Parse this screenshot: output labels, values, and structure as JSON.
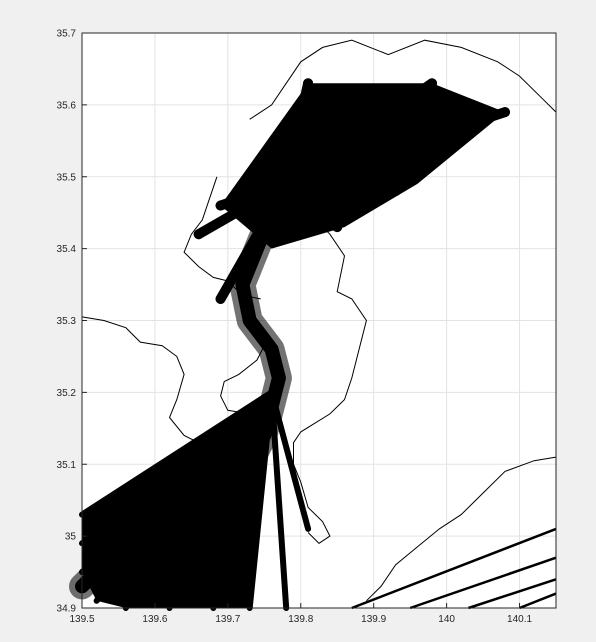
{
  "chart_data": {
    "type": "line",
    "title": "",
    "xlabel": "",
    "ylabel": "",
    "xlim": [
      139.5,
      140.15
    ],
    "ylim": [
      34.9,
      35.7
    ],
    "x_ticks": [
      139.5,
      139.6,
      139.7,
      139.8,
      139.9,
      140.0,
      140.1
    ],
    "x_tick_labels": [
      "139.5",
      "139.6",
      "139.7",
      "139.8",
      "139.9",
      "140",
      "140.1"
    ],
    "y_ticks": [
      34.9,
      35.0,
      35.1,
      35.2,
      35.3,
      35.4,
      35.5,
      35.6,
      35.7
    ],
    "y_tick_labels": [
      "34.9",
      "35",
      "35.1",
      "35.2",
      "35.3",
      "35.4",
      "35.5",
      "35.6",
      "35.7"
    ],
    "grid": true,
    "legend": "none",
    "colors": {
      "figure_bg": "#f0f0f0",
      "axes_bg": "#ffffff",
      "grid": "#e3e3e3",
      "line": "#000000"
    },
    "coastline_west": [
      [
        139.5,
        35.305
      ],
      [
        139.53,
        35.3
      ],
      [
        139.56,
        35.29
      ],
      [
        139.58,
        35.27
      ],
      [
        139.61,
        35.265
      ],
      [
        139.63,
        35.25
      ],
      [
        139.64,
        35.225
      ],
      [
        139.63,
        35.19
      ],
      [
        139.62,
        35.165
      ],
      [
        139.64,
        35.14
      ],
      [
        139.66,
        35.13
      ],
      [
        139.69,
        35.135
      ],
      [
        139.71,
        35.125
      ]
    ],
    "coastline_west_upper": [
      [
        139.745,
        35.33
      ],
      [
        139.72,
        35.335
      ],
      [
        139.7,
        35.355
      ],
      [
        139.68,
        35.36
      ],
      [
        139.66,
        35.375
      ],
      [
        139.64,
        35.395
      ],
      [
        139.65,
        35.42
      ],
      [
        139.665,
        35.44
      ],
      [
        139.675,
        35.47
      ],
      [
        139.685,
        35.5
      ]
    ],
    "coastline_west_bay": [
      [
        139.75,
        35.265
      ],
      [
        139.74,
        35.245
      ],
      [
        139.715,
        35.225
      ],
      [
        139.695,
        35.215
      ],
      [
        139.69,
        35.195
      ],
      [
        139.7,
        35.175
      ],
      [
        139.73,
        35.17
      ],
      [
        139.745,
        35.15
      ],
      [
        139.75,
        35.12
      ]
    ],
    "coastline_boso": [
      [
        139.79,
        35.52
      ],
      [
        139.81,
        35.45
      ],
      [
        139.84,
        35.42
      ],
      [
        139.86,
        35.39
      ],
      [
        139.85,
        35.34
      ],
      [
        139.87,
        35.33
      ],
      [
        139.89,
        35.3
      ],
      [
        139.88,
        35.26
      ],
      [
        139.87,
        35.22
      ],
      [
        139.86,
        35.19
      ],
      [
        139.84,
        35.17
      ],
      [
        139.8,
        35.145
      ],
      [
        139.79,
        35.13
      ],
      [
        139.79,
        35.1
      ],
      [
        139.8,
        35.075
      ],
      [
        139.81,
        35.04
      ],
      [
        139.83,
        35.02
      ],
      [
        139.84,
        35.0
      ],
      [
        139.825,
        34.99
      ],
      [
        139.81,
        35.005
      ]
    ],
    "coastline_east": [
      [
        140.15,
        35.11
      ],
      [
        140.12,
        35.105
      ],
      [
        140.08,
        35.09
      ],
      [
        140.05,
        35.06
      ],
      [
        140.02,
        35.03
      ],
      [
        139.99,
        35.01
      ],
      [
        139.96,
        34.985
      ],
      [
        139.93,
        34.96
      ],
      [
        139.91,
        34.93
      ],
      [
        139.89,
        34.91
      ]
    ],
    "coastline_north": [
      [
        139.73,
        35.58
      ],
      [
        139.76,
        35.6
      ],
      [
        139.78,
        35.63
      ],
      [
        139.8,
        35.66
      ],
      [
        139.83,
        35.68
      ],
      [
        139.87,
        35.69
      ],
      [
        139.92,
        35.67
      ],
      [
        139.97,
        35.69
      ],
      [
        140.02,
        35.68
      ],
      [
        140.07,
        35.66
      ],
      [
        140.1,
        35.64
      ],
      [
        140.13,
        35.61
      ],
      [
        140.15,
        35.59
      ]
    ],
    "route_trunk": [
      [
        139.82,
        35.6
      ],
      [
        139.8,
        35.55
      ],
      [
        139.78,
        35.5
      ],
      [
        139.76,
        35.45
      ],
      [
        139.74,
        35.4
      ],
      [
        139.72,
        35.35
      ],
      [
        139.73,
        35.3
      ],
      [
        139.76,
        35.26
      ],
      [
        139.77,
        35.22
      ],
      [
        139.76,
        35.18
      ],
      [
        139.75,
        35.14
      ],
      [
        139.73,
        35.1
      ],
      [
        139.7,
        35.06
      ],
      [
        139.65,
        35.02
      ],
      [
        139.58,
        34.98
      ],
      [
        139.52,
        34.95
      ],
      [
        139.5,
        34.93
      ]
    ],
    "route_fan_ends": [
      [
        139.5,
        35.03
      ],
      [
        139.5,
        34.99
      ],
      [
        139.5,
        34.95
      ],
      [
        139.52,
        34.91
      ],
      [
        139.56,
        34.9
      ],
      [
        139.62,
        34.9
      ],
      [
        139.68,
        34.9
      ],
      [
        139.73,
        34.9
      ],
      [
        139.78,
        34.9
      ],
      [
        139.81,
        35.01
      ]
    ],
    "route_hubs": [
      [
        139.81,
        35.63
      ],
      [
        139.98,
        35.63
      ],
      [
        140.08,
        35.59
      ],
      [
        139.86,
        35.58
      ],
      [
        139.96,
        35.57
      ],
      [
        139.69,
        35.46
      ],
      [
        139.66,
        35.42
      ],
      [
        139.69,
        35.33
      ],
      [
        139.85,
        35.43
      ],
      [
        139.93,
        35.48
      ]
    ],
    "route_east_lines": [
      [
        [
          139.87,
          34.9
        ],
        [
          140.15,
          35.01
        ]
      ],
      [
        [
          139.95,
          34.9
        ],
        [
          140.15,
          34.97
        ]
      ],
      [
        [
          140.03,
          34.9
        ],
        [
          140.15,
          34.94
        ]
      ],
      [
        [
          140.1,
          34.9
        ],
        [
          140.15,
          34.92
        ]
      ]
    ]
  }
}
